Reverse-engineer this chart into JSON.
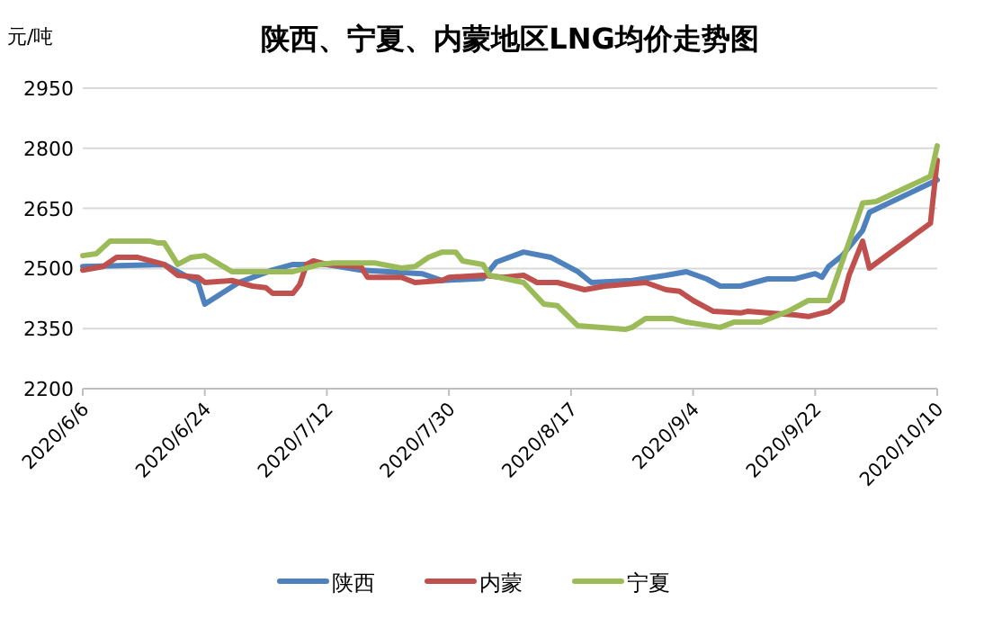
{
  "chart_data": {
    "type": "line",
    "title": "陕西、宁夏、内蒙地区LNG均价走势图",
    "ylabel": "元/吨",
    "grid": "y",
    "legend": "bottom",
    "line_style": "solid",
    "xlim": [
      "2020-06-06",
      "2020-10-10"
    ],
    "xticks": [
      {
        "value": "2020-06-06",
        "label": "2020/6/6"
      },
      {
        "value": "2020-06-24",
        "label": "2020/6/24"
      },
      {
        "value": "2020-07-12",
        "label": "2020/7/12"
      },
      {
        "value": "2020-07-30",
        "label": "2020/7/30"
      },
      {
        "value": "2020-08-17",
        "label": "2020/8/17"
      },
      {
        "value": "2020-09-04",
        "label": "2020/9/4"
      },
      {
        "value": "2020-09-22",
        "label": "2020/9/22"
      },
      {
        "value": "2020-10-10",
        "label": "2020/10/10"
      }
    ],
    "ylim": [
      2200,
      2950
    ],
    "yticks": [
      2200,
      2350,
      2500,
      2650,
      2800,
      2950
    ],
    "series": [
      {
        "name": "陕西",
        "color": "#4f81bd",
        "x": [
          "2020-06-06",
          "2020-06-18",
          "2020-06-23",
          "2020-06-24",
          "2020-06-29",
          "2020-07-04",
          "2020-07-07",
          "2020-07-12",
          "2020-07-17",
          "2020-07-26",
          "2020-07-29",
          "2020-08-04",
          "2020-08-06",
          "2020-08-10",
          "2020-08-14",
          "2020-08-18",
          "2020-08-20",
          "2020-08-26",
          "2020-08-31",
          "2020-09-03",
          "2020-09-06",
          "2020-09-08",
          "2020-09-11",
          "2020-09-15",
          "2020-09-19",
          "2020-09-22",
          "2020-09-23",
          "2020-09-24",
          "2020-09-26",
          "2020-09-29",
          "2020-09-30",
          "2020-10-10"
        ],
        "values": [
          2505,
          2510,
          2465,
          2411,
          2465,
          2496,
          2510,
          2510,
          2496,
          2487,
          2470,
          2475,
          2516,
          2541,
          2528,
          2492,
          2465,
          2470,
          2483,
          2492,
          2474,
          2456,
          2456,
          2474,
          2474,
          2487,
          2478,
          2505,
          2532,
          2595,
          2640,
          2721
        ]
      },
      {
        "name": "内蒙",
        "color": "#c0504d",
        "x": [
          "2020-06-06",
          "2020-06-09",
          "2020-06-11",
          "2020-06-14",
          "2020-06-18",
          "2020-06-20",
          "2020-06-23",
          "2020-06-24",
          "2020-06-28",
          "2020-07-01",
          "2020-07-03",
          "2020-07-04",
          "2020-07-07",
          "2020-07-08",
          "2020-07-09",
          "2020-07-10",
          "2020-07-12",
          "2020-07-17",
          "2020-07-18",
          "2020-07-23",
          "2020-07-25",
          "2020-07-29",
          "2020-07-30",
          "2020-08-04",
          "2020-08-07",
          "2020-08-10",
          "2020-08-12",
          "2020-08-15",
          "2020-08-19",
          "2020-08-22",
          "2020-08-28",
          "2020-08-31",
          "2020-09-02",
          "2020-09-04",
          "2020-09-07",
          "2020-09-11",
          "2020-09-12",
          "2020-09-15",
          "2020-09-19",
          "2020-09-21",
          "2020-09-24",
          "2020-09-26",
          "2020-09-27",
          "2020-09-29",
          "2020-09-30",
          "2020-10-09",
          "2020-10-10"
        ],
        "values": [
          2496,
          2505,
          2528,
          2528,
          2510,
          2483,
          2478,
          2465,
          2470,
          2456,
          2452,
          2438,
          2438,
          2460,
          2510,
          2519,
          2510,
          2505,
          2478,
          2478,
          2465,
          2470,
          2478,
          2483,
          2478,
          2483,
          2465,
          2465,
          2447,
          2456,
          2465,
          2447,
          2443,
          2420,
          2393,
          2389,
          2393,
          2389,
          2384,
          2380,
          2393,
          2420,
          2483,
          2568,
          2501,
          2613,
          2770
        ]
      },
      {
        "name": "宁夏",
        "color": "#9bbb59",
        "x": [
          "2020-06-06",
          "2020-06-08",
          "2020-06-10",
          "2020-06-16",
          "2020-06-17",
          "2020-06-18",
          "2020-06-20",
          "2020-06-22",
          "2020-06-24",
          "2020-06-28",
          "2020-07-07",
          "2020-07-11",
          "2020-07-13",
          "2020-07-19",
          "2020-07-23",
          "2020-07-25",
          "2020-07-27",
          "2020-07-29",
          "2020-07-31",
          "2020-08-01",
          "2020-08-04",
          "2020-08-05",
          "2020-08-10",
          "2020-08-12",
          "2020-08-13",
          "2020-08-15",
          "2020-08-18",
          "2020-08-25",
          "2020-08-26",
          "2020-08-28",
          "2020-09-01",
          "2020-09-03",
          "2020-09-08",
          "2020-09-10",
          "2020-09-14",
          "2020-09-18",
          "2020-09-21",
          "2020-09-24",
          "2020-09-29",
          "2020-10-01",
          "2020-10-09",
          "2020-10-10"
        ],
        "values": [
          2532,
          2537,
          2568,
          2568,
          2564,
          2564,
          2510,
          2528,
          2532,
          2492,
          2492,
          2510,
          2514,
          2514,
          2501,
          2505,
          2528,
          2541,
          2541,
          2519,
          2510,
          2483,
          2465,
          2429,
          2411,
          2407,
          2357,
          2348,
          2353,
          2375,
          2375,
          2366,
          2353,
          2366,
          2366,
          2393,
          2420,
          2420,
          2663,
          2667,
          2730,
          2806
        ]
      }
    ]
  }
}
